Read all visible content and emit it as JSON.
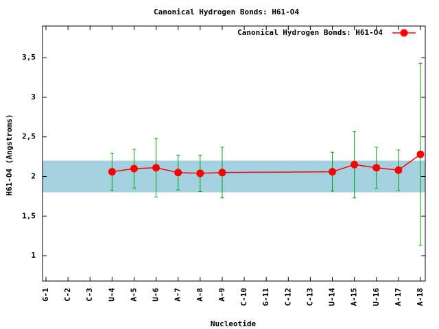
{
  "chart_data": {
    "type": "line",
    "title": "Canonical Hydrogen Bonds: H61-O4",
    "x_label": "Nucleotide",
    "y_label": "H61-O4 (Angstroms)",
    "categories": [
      "G-1",
      "C-2",
      "C-3",
      "U-4",
      "A-5",
      "U-6",
      "A-7",
      "A-8",
      "A-9",
      "C-10",
      "G-11",
      "C-12",
      "C-13",
      "U-14",
      "A-15",
      "U-16",
      "A-17",
      "A-18"
    ],
    "series": [
      {
        "name": "Canonical Hydrogen Bonds: H61-O4",
        "color": "#ff0000",
        "error_color": "#00a000",
        "values": [
          null,
          null,
          null,
          2.06,
          2.1,
          2.11,
          2.05,
          2.04,
          2.05,
          null,
          null,
          null,
          null,
          2.06,
          2.15,
          2.11,
          2.08,
          2.28
        ],
        "errors": [
          null,
          null,
          null,
          0.235,
          0.245,
          0.37,
          0.22,
          0.23,
          0.32,
          null,
          null,
          null,
          null,
          0.245,
          0.42,
          0.26,
          0.255,
          1.15
        ]
      }
    ],
    "reference_band": [
      1.8,
      2.2
    ],
    "band_color": "#a4d1e0",
    "ylim": [
      0.68,
      3.9
    ],
    "yticks": [
      {
        "value": 1,
        "label": "1"
      },
      {
        "value": 1.5,
        "label": "1,5"
      },
      {
        "value": 2,
        "label": "2"
      },
      {
        "value": 2.5,
        "label": "2,5"
      },
      {
        "value": 3,
        "label": "3"
      },
      {
        "value": 3.5,
        "label": "3,5"
      }
    ],
    "legend": "top-right"
  }
}
